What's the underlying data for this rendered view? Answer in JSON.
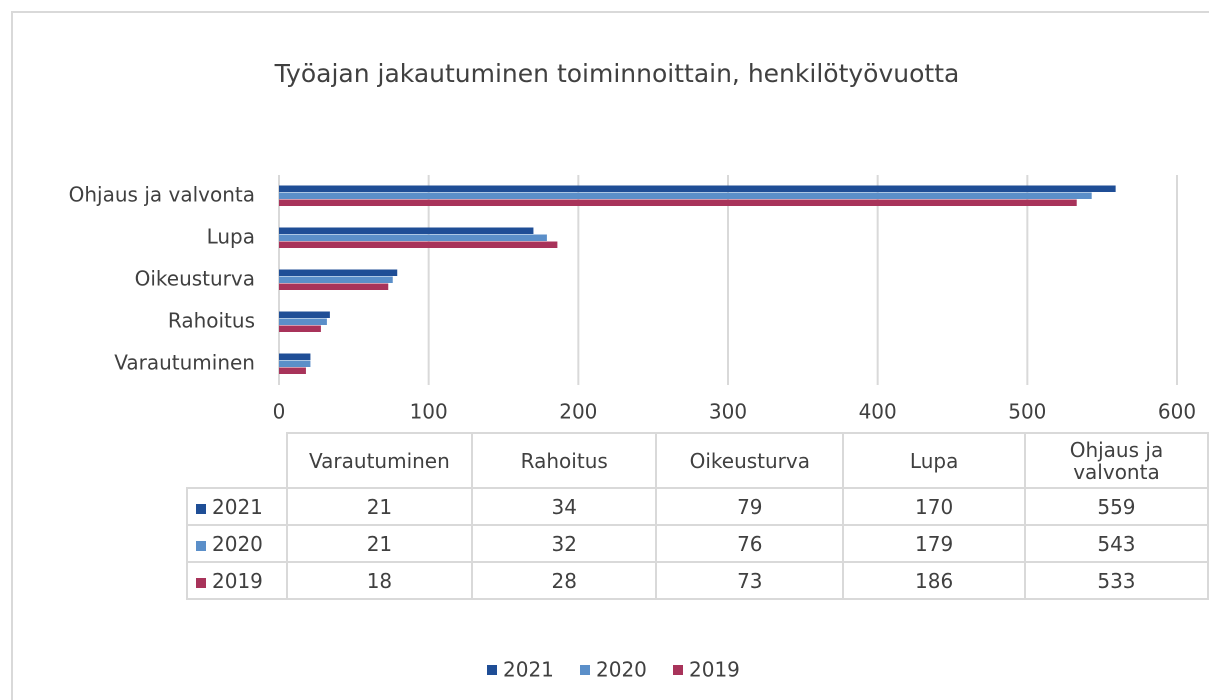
{
  "chart_data": {
    "type": "bar",
    "orientation": "horizontal",
    "title": "Työajan jakautuminen toiminnoittain, henkilötyövuotta",
    "categories": [
      "Varautuminen",
      "Rahoitus",
      "Oikeusturva",
      "Lupa",
      "Ohjaus ja valvonta"
    ],
    "series": [
      {
        "name": "2021",
        "color": "#1f4e96",
        "values": [
          21,
          34,
          79,
          170,
          559
        ]
      },
      {
        "name": "2020",
        "color": "#5b8fc9",
        "values": [
          21,
          32,
          76,
          179,
          543
        ]
      },
      {
        "name": "2019",
        "color": "#a8335a",
        "values": [
          18,
          28,
          73,
          186,
          533
        ]
      }
    ],
    "xlim": [
      0,
      600
    ],
    "xticks": [
      0,
      100,
      200,
      300,
      400,
      500,
      600
    ],
    "grid": true,
    "legend": "bottom"
  }
}
